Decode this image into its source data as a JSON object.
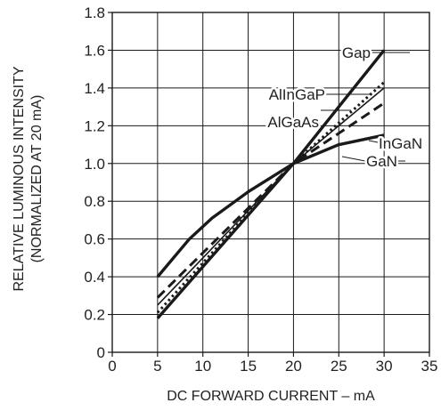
{
  "chart_data": {
    "type": "line",
    "xlabel": "DC FORWARD CURRENT – mA",
    "ylabel_lines": [
      "RELATIVE LUMINOUS INTENSITY",
      "(NORMALIZED AT 20 mA)"
    ],
    "xlim": [
      0,
      35
    ],
    "ylim": [
      0,
      1.8
    ],
    "x_ticks": [
      0,
      5,
      10,
      15,
      20,
      25,
      30,
      35
    ],
    "y_ticks": [
      0,
      0.2,
      0.4,
      0.6,
      0.8,
      1.0,
      1.2,
      1.4,
      1.6,
      1.8
    ],
    "x_tick_labels": [
      "0",
      "5",
      "10",
      "15",
      "20",
      "25",
      "30",
      "35"
    ],
    "y_tick_labels": [
      "0",
      "0.2",
      "0.4",
      "0.6",
      "0.8",
      "1.0",
      "1.2",
      "1.4",
      "1.6",
      "1.8"
    ],
    "grid": true,
    "series": [
      {
        "name": "Gap",
        "style": "solid-thick",
        "x": [
          5,
          20,
          30
        ],
        "y": [
          0.18,
          1.0,
          1.6
        ]
      },
      {
        "name": "AlInGaP",
        "style": "dotted",
        "x": [
          5,
          20,
          30
        ],
        "y": [
          0.21,
          1.0,
          1.43
        ]
      },
      {
        "name": "AlGaAs",
        "style": "solid-thin",
        "x": [
          5,
          20,
          30
        ],
        "y": [
          0.25,
          1.0,
          1.4
        ]
      },
      {
        "name": "InGaN",
        "style": "dashed",
        "x": [
          5,
          20,
          30
        ],
        "y": [
          0.29,
          1.0,
          1.32
        ]
      },
      {
        "name": "GaN",
        "style": "solid-thick",
        "x": [
          5,
          8.5,
          11,
          15,
          20,
          25,
          30
        ],
        "y": [
          0.4,
          0.6,
          0.71,
          0.85,
          1.0,
          1.1,
          1.15
        ]
      }
    ],
    "annotations": [
      {
        "text": "Gap",
        "series": "Gap"
      },
      {
        "text": "AlInGaP",
        "series": "AlInGaP"
      },
      {
        "text": "AlGaAs",
        "series": "AlGaAs"
      },
      {
        "text": "InGaN",
        "series": "InGaN"
      },
      {
        "text": "GaN",
        "series": "GaN"
      }
    ]
  }
}
